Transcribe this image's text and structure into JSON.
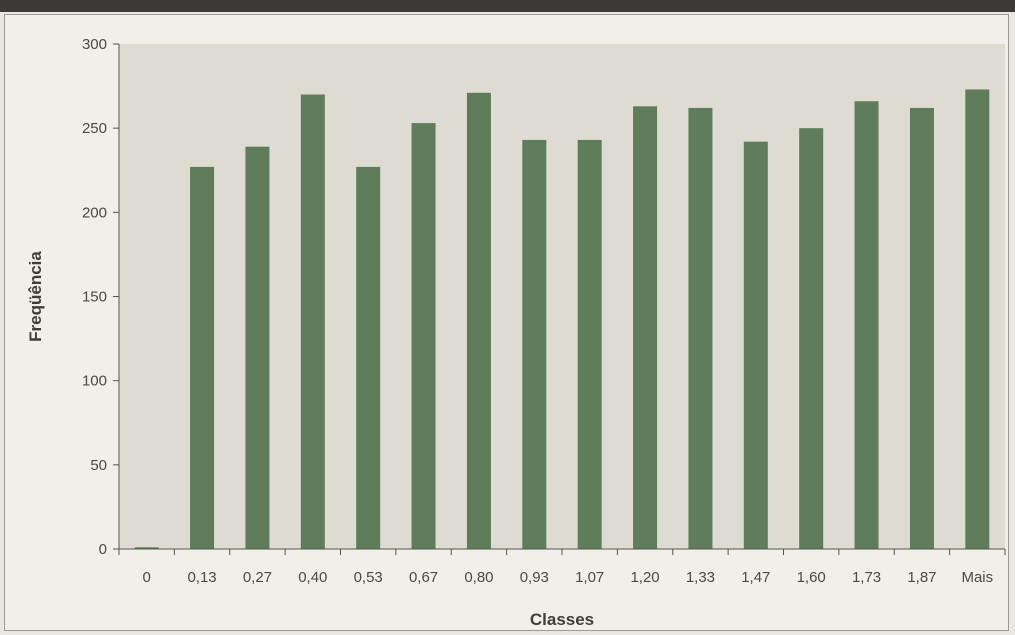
{
  "chart_data": {
    "type": "bar",
    "xlabel": "Classes",
    "ylabel": "Freqüência",
    "ylim": [
      0,
      300
    ],
    "yticks": [
      0,
      50,
      100,
      150,
      200,
      250,
      300
    ],
    "categories": [
      "0",
      "0,13",
      "0,27",
      "0,40",
      "0,53",
      "0,67",
      "0,80",
      "0,93",
      "1,07",
      "1,20",
      "1,33",
      "1,47",
      "1,60",
      "1,73",
      "1,87",
      "Mais"
    ],
    "values": [
      1,
      227,
      239,
      270,
      227,
      253,
      271,
      243,
      243,
      263,
      262,
      242,
      250,
      266,
      262,
      273
    ],
    "bar_color": "#5f7d5a",
    "plot_background": "#dedcd2",
    "grid": false
  }
}
